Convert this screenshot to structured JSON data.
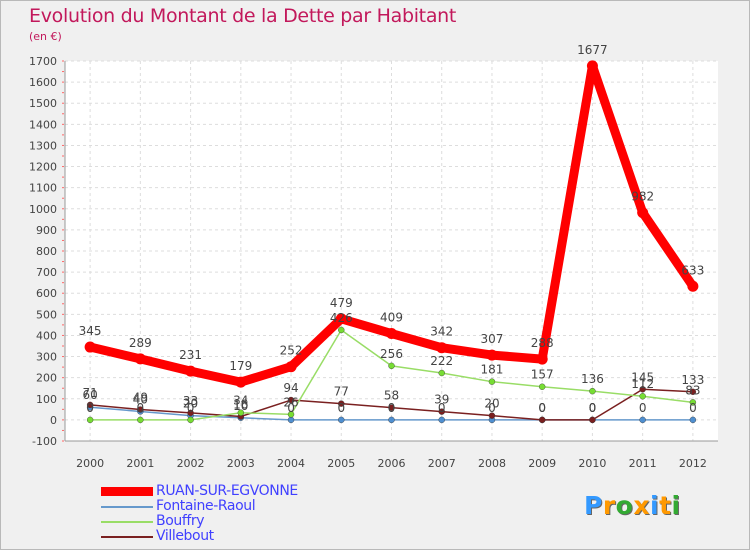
{
  "chart_data": {
    "type": "line",
    "title": "Evolution du Montant de la Dette par Habitant",
    "subtitle": "(en €)",
    "xlabel": "",
    "ylabel": "",
    "ylim": [
      -100,
      1700
    ],
    "yticks": [
      -100,
      0,
      100,
      200,
      300,
      400,
      500,
      600,
      700,
      800,
      900,
      1000,
      1100,
      1200,
      1300,
      1400,
      1500,
      1600,
      1700
    ],
    "grid": true,
    "legend_position": "bottom-left",
    "categories": [
      "2000",
      "2001",
      "2002",
      "2003",
      "2004",
      "2005",
      "2006",
      "2007",
      "2008",
      "2009",
      "2010",
      "2011",
      "2012"
    ],
    "series": [
      {
        "name": "RUAN-SUR-EGVONNE",
        "color": "#ff0000",
        "values": [
          345,
          289,
          231,
          179,
          252,
          479,
          409,
          342,
          307,
          288,
          1677,
          982,
          633
        ]
      },
      {
        "name": "Fontaine-Raoul",
        "color": "#6699cc",
        "values": [
          60,
          40,
          20,
          10,
          0,
          0,
          0,
          0,
          0,
          0,
          0,
          0,
          0
        ]
      },
      {
        "name": "Bouffry",
        "color": "#99dd66",
        "values": [
          0,
          0,
          0,
          34,
          26,
          426,
          256,
          222,
          181,
          157,
          136,
          112,
          83
        ]
      },
      {
        "name": "Villebout",
        "color": "#7a2020",
        "values": [
          71,
          49,
          33,
          16,
          94,
          77,
          58,
          39,
          20,
          0,
          0,
          145,
          133
        ]
      }
    ]
  },
  "logo": {
    "letters": [
      "P",
      "r",
      "o",
      "x",
      "i",
      "t",
      "i"
    ],
    "colors": [
      "#3399ff",
      "#ff9900",
      "#33aa33",
      "#ff9900",
      "#3399ff",
      "#ff9900",
      "#33aa33"
    ]
  }
}
